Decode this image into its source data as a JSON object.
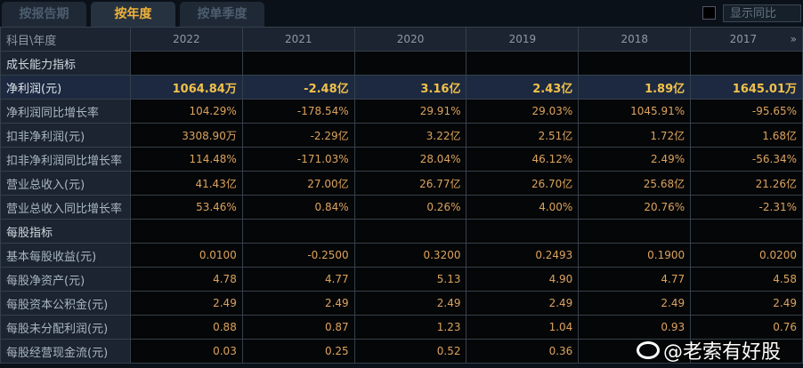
{
  "tabs": [
    "按报告期",
    "按年度",
    "按单季度"
  ],
  "active_tab": 1,
  "toggle_label": "显示同比",
  "header": {
    "label": "科目\\年度",
    "years": [
      "2022",
      "2021",
      "2020",
      "2019",
      "2018",
      "2017"
    ],
    "more_icon": "double-chevron-right"
  },
  "rows": [
    {
      "label": "成长能力指标",
      "type": "section",
      "values": [
        "",
        "",
        "",
        "",
        "",
        ""
      ]
    },
    {
      "label": "净利润(元)",
      "type": "highlight",
      "values": [
        "1064.84万",
        "-2.48亿",
        "3.16亿",
        "2.43亿",
        "1.89亿",
        "1645.01万"
      ]
    },
    {
      "label": "净利润同比增长率",
      "values": [
        "104.29%",
        "-178.54%",
        "29.91%",
        "29.03%",
        "1045.91%",
        "-95.65%"
      ]
    },
    {
      "label": "扣非净利润(元)",
      "values": [
        "3308.90万",
        "-2.29亿",
        "3.22亿",
        "2.51亿",
        "1.72亿",
        "1.68亿"
      ]
    },
    {
      "label": "扣非净利润同比增长率",
      "values": [
        "114.48%",
        "-171.03%",
        "28.04%",
        "46.12%",
        "2.49%",
        "-56.34%"
      ]
    },
    {
      "label": "营业总收入(元)",
      "values": [
        "41.43亿",
        "27.00亿",
        "26.77亿",
        "26.70亿",
        "25.68亿",
        "21.26亿"
      ]
    },
    {
      "label": "营业总收入同比增长率",
      "values": [
        "53.46%",
        "0.84%",
        "0.26%",
        "4.00%",
        "20.76%",
        "-2.31%"
      ]
    },
    {
      "label": "每股指标",
      "type": "section",
      "values": [
        "",
        "",
        "",
        "",
        "",
        ""
      ]
    },
    {
      "label": "基本每股收益(元)",
      "values": [
        "0.0100",
        "-0.2500",
        "0.3200",
        "0.2493",
        "0.1900",
        "0.0200"
      ]
    },
    {
      "label": "每股净资产(元)",
      "values": [
        "4.78",
        "4.77",
        "5.13",
        "4.90",
        "4.77",
        "4.58"
      ]
    },
    {
      "label": "每股资本公积金(元)",
      "values": [
        "2.49",
        "2.49",
        "2.49",
        "2.49",
        "2.49",
        "2.49"
      ]
    },
    {
      "label": "每股未分配利润(元)",
      "values": [
        "0.88",
        "0.87",
        "1.23",
        "1.04",
        "0.93",
        "0.76"
      ]
    },
    {
      "label": "每股经营现金流(元)",
      "values": [
        "0.03",
        "0.25",
        "0.52",
        "0.36",
        "",
        ""
      ]
    }
  ],
  "watermark": "@老索有好股",
  "colors": {
    "value": "#dca35e",
    "highlight_value": "#f2c14a",
    "active_tab": "#f0b23a"
  }
}
